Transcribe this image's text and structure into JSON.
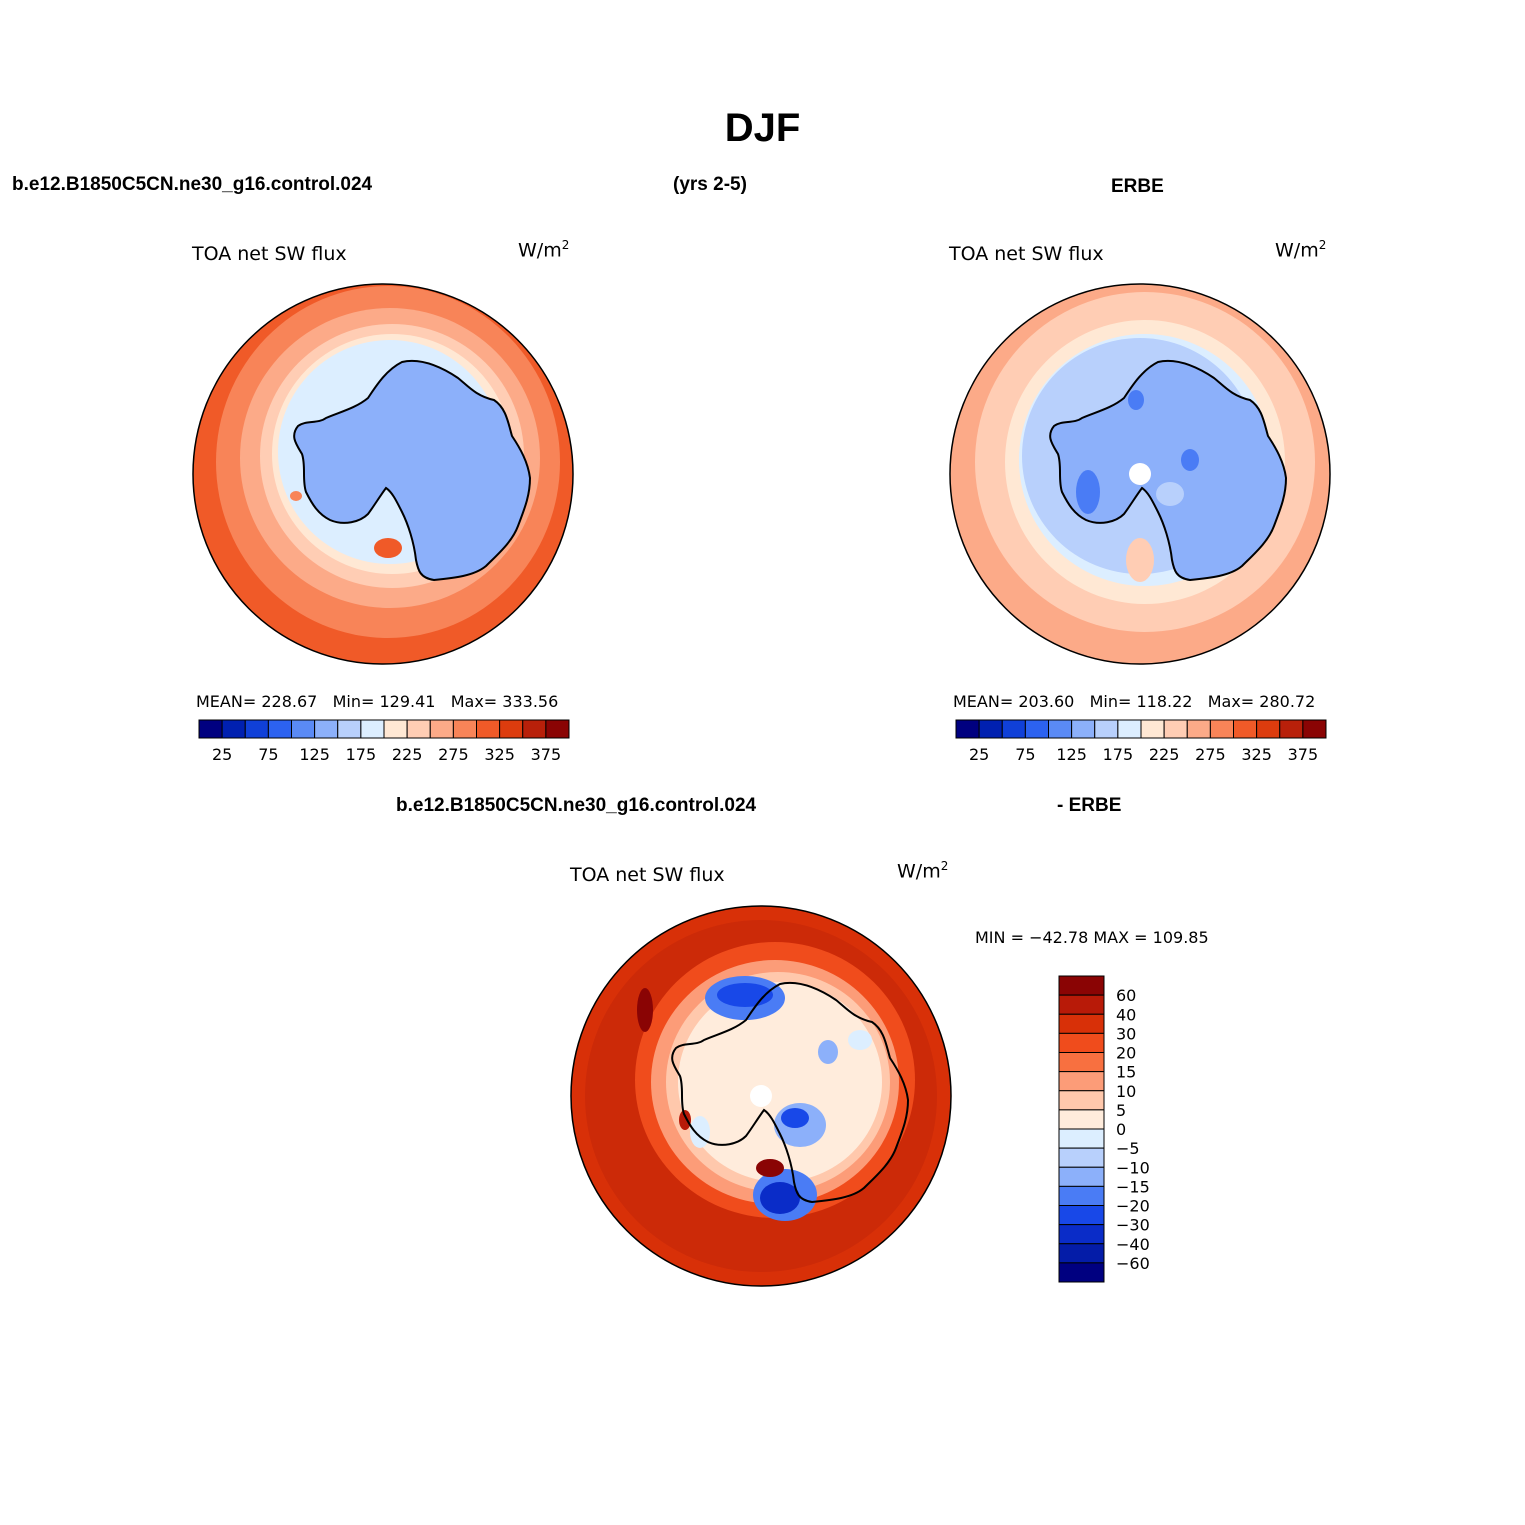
{
  "title": "DJF",
  "top_left_case": "b.e12.B1850C5CN.ne30_g16.control.024",
  "years": "(yrs 2-5)",
  "top_right_case": "ERBE",
  "diff_case_left": "b.e12.B1850C5CN.ne30_g16.control.024",
  "diff_case_right": "- ERBE",
  "chart_data": [
    {
      "type": "heatmap",
      "title": "TOA net SW flux",
      "units": "W/m",
      "units_sup": "2",
      "projection": "south polar stereographic",
      "stats": {
        "mean_label": "MEAN=",
        "mean": "228.67",
        "min_label": "Min=",
        "min": "129.41",
        "max_label": "Max=",
        "max": "333.56"
      },
      "colorbar": {
        "orientation": "horizontal",
        "tick_labels": [
          "25",
          "75",
          "125",
          "175",
          "225",
          "275",
          "325",
          "375"
        ],
        "colors": [
          "#000080",
          "#0020b0",
          "#1040d8",
          "#2c62f0",
          "#5a8af5",
          "#8cb0fa",
          "#b8d0fc",
          "#dceeff",
          "#ffe8d4",
          "#ffcdb4",
          "#fcaa88",
          "#f88458",
          "#f05a28",
          "#dd3c0e",
          "#b8200a",
          "#8a0404"
        ]
      }
    },
    {
      "type": "heatmap",
      "title": "TOA net SW flux",
      "units": "W/m",
      "units_sup": "2",
      "projection": "south polar stereographic",
      "stats": {
        "mean_label": "MEAN=",
        "mean": "203.60",
        "min_label": "Min=",
        "min": "118.22",
        "max_label": "Max=",
        "max": "280.72"
      },
      "colorbar": {
        "orientation": "horizontal",
        "tick_labels": [
          "25",
          "75",
          "125",
          "175",
          "225",
          "275",
          "325",
          "375"
        ],
        "colors": [
          "#000080",
          "#0020b0",
          "#1040d8",
          "#2c62f0",
          "#5a8af5",
          "#8cb0fa",
          "#b8d0fc",
          "#dceeff",
          "#ffe8d4",
          "#ffcdb4",
          "#fcaa88",
          "#f88458",
          "#f05a28",
          "#dd3c0e",
          "#b8200a",
          "#8a0404"
        ]
      }
    },
    {
      "type": "heatmap",
      "title": "TOA net SW flux",
      "units": "W/m",
      "units_sup": "2",
      "projection": "south polar stereographic",
      "stats_text": "MIN = −42.78 MAX = 109.85",
      "colorbar": {
        "orientation": "vertical",
        "tick_labels": [
          "60",
          "40",
          "30",
          "20",
          "15",
          "10",
          "5",
          "0",
          "−5",
          "−10",
          "−15",
          "−20",
          "−30",
          "−40",
          "−60"
        ],
        "colors": [
          "#8a0404",
          "#b81a08",
          "#d83008",
          "#f04c1c",
          "#f87040",
          "#fc9c78",
          "#ffc8ac",
          "#ffecdc",
          "#dceeff",
          "#b8d0fc",
          "#8cb0fa",
          "#4a7cf5",
          "#1848e8",
          "#0a2cc8",
          "#041ca8",
          "#000080"
        ]
      }
    }
  ]
}
